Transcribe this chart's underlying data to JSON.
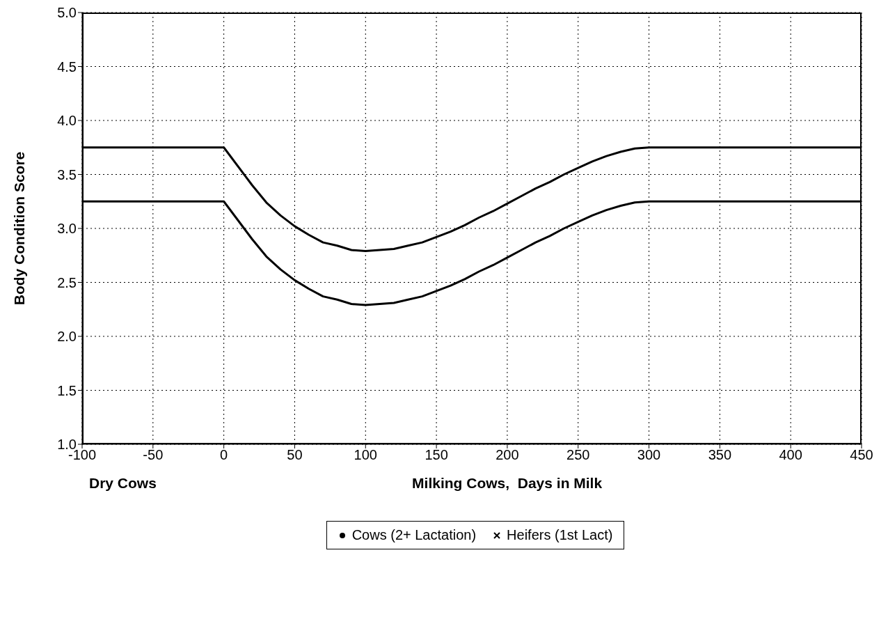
{
  "chart_data": {
    "type": "line",
    "xlabel": "Milking Cows,  Days in Milk",
    "ylabel": "Body Condition Score",
    "annotations": [
      "Dry Cows"
    ],
    "x": [
      -100,
      0,
      20,
      30,
      40,
      50,
      60,
      70,
      80,
      90,
      100,
      110,
      120,
      130,
      140,
      150,
      160,
      170,
      180,
      190,
      200,
      210,
      220,
      230,
      240,
      250,
      260,
      270,
      280,
      290,
      300,
      450
    ],
    "series": [
      {
        "color": "#000000",
        "values": [
          3.75,
          3.75,
          3.4,
          3.24,
          3.12,
          3.02,
          2.94,
          2.87,
          2.84,
          2.8,
          2.79,
          2.8,
          2.81,
          2.84,
          2.87,
          2.92,
          2.97,
          3.03,
          3.1,
          3.16,
          3.23,
          3.3,
          3.37,
          3.43,
          3.5,
          3.56,
          3.62,
          3.67,
          3.71,
          3.74,
          3.75,
          3.75
        ]
      },
      {
        "color": "#000000",
        "values": [
          3.25,
          3.25,
          2.9,
          2.74,
          2.62,
          2.52,
          2.44,
          2.37,
          2.34,
          2.3,
          2.29,
          2.3,
          2.31,
          2.34,
          2.37,
          2.42,
          2.47,
          2.53,
          2.6,
          2.66,
          2.73,
          2.8,
          2.87,
          2.93,
          3.0,
          3.06,
          3.12,
          3.17,
          3.21,
          3.24,
          3.25,
          3.25
        ]
      },
      {
        "type": "scatter",
        "name": "Cows (2+ Lactation)",
        "color": "#000000",
        "marker": "circle",
        "values": [
          null,
          null,
          null,
          null,
          null,
          null,
          null,
          null,
          null,
          null,
          null,
          null,
          null,
          null,
          null,
          null,
          null,
          null,
          null,
          null,
          null,
          null,
          null,
          null,
          null,
          null,
          null,
          null,
          null,
          null,
          null,
          null
        ]
      },
      {
        "type": "scatter",
        "name": "Heifers (1st Lact)",
        "color": "#000000",
        "marker": "cross",
        "values": [
          null,
          null,
          null,
          null,
          null,
          null,
          null,
          null,
          null,
          null,
          null,
          null,
          null,
          null,
          null,
          null,
          null,
          null,
          null,
          null,
          null,
          null,
          null,
          null,
          null,
          null,
          null,
          null,
          null,
          null,
          null,
          null
        ]
      }
    ],
    "xlim": [
      -100,
      450
    ],
    "xticks": [
      -100,
      -50,
      0,
      50,
      100,
      150,
      200,
      250,
      300,
      350,
      400,
      450
    ],
    "ylim": [
      1,
      5
    ],
    "yticks": [
      {
        "value": 1,
        "label": "1.0"
      },
      1.5,
      {
        "value": 2,
        "label": "2.0"
      },
      2.5,
      {
        "value": 3,
        "label": "3.0"
      },
      3.5,
      {
        "value": 4,
        "label": "4.0"
      },
      4.5,
      {
        "value": 5,
        "label": "5.0"
      }
    ],
    "grid": true,
    "legend": "bottom",
    "line_style": "solid"
  }
}
